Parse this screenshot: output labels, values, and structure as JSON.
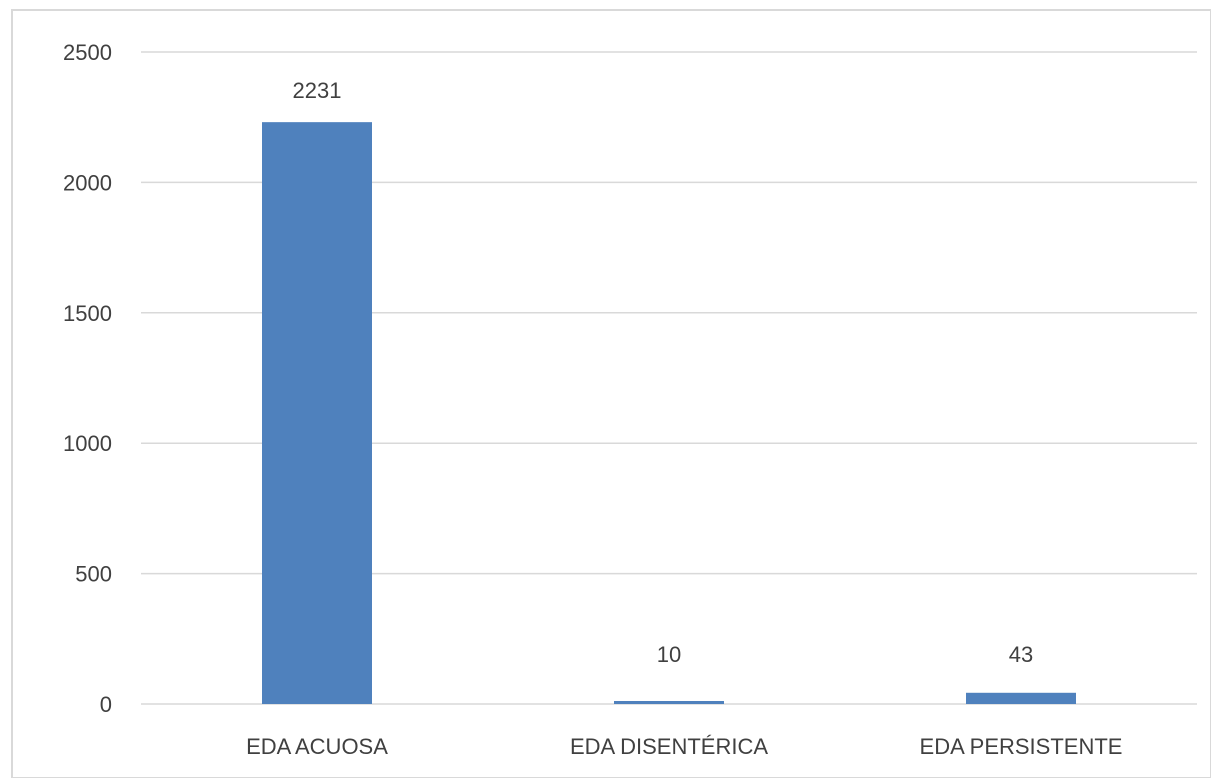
{
  "chart_data": {
    "type": "bar",
    "categories": [
      "EDA ACUOSA",
      "EDA DISENTÉRICA",
      "EDA PERSISTENTE"
    ],
    "values": [
      2231,
      10,
      43
    ],
    "data_labels": [
      "2231",
      "10",
      "43"
    ],
    "ylim": [
      0,
      2500
    ],
    "yticks": [
      0,
      500,
      1000,
      1500,
      2000,
      2500
    ],
    "ytick_labels": [
      "0",
      "500",
      "1000",
      "1500",
      "2000",
      "2500"
    ],
    "grid": true,
    "legend": "none",
    "colors": {
      "bar": "#4f81bd",
      "grid": "#d9d9d9",
      "text": "#404040",
      "frame": "#d9d9d9"
    }
  }
}
